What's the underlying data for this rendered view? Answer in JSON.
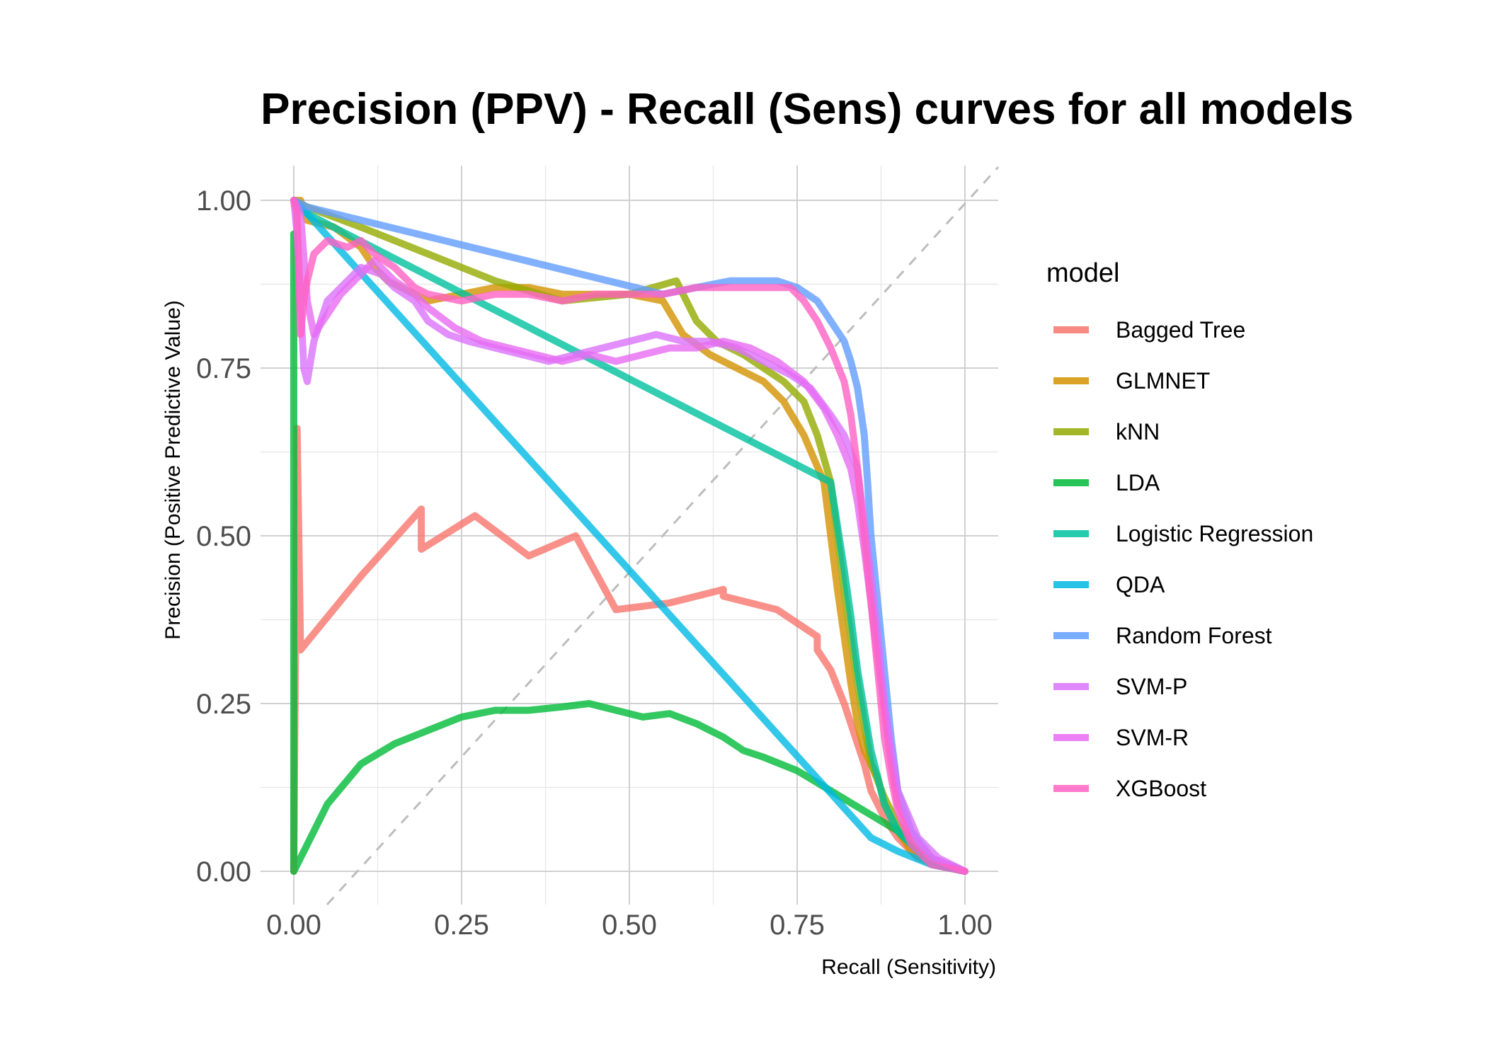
{
  "chart_data": {
    "type": "line",
    "title": "Precision (PPV) - Recall (Sens) curves for all models",
    "xlabel": "Recall (Sensitivity)",
    "ylabel": "Precision (Positive Predictive Value)",
    "xlim": [
      0,
      1
    ],
    "ylim": [
      0,
      1
    ],
    "x_ticks": [
      "0.00",
      "0.25",
      "0.50",
      "0.75",
      "1.00"
    ],
    "y_ticks": [
      "0.00",
      "0.25",
      "0.50",
      "0.75",
      "1.00"
    ],
    "grid": true,
    "reference_line": {
      "type": "diagonal",
      "style": "dashed",
      "color": "#bdbdbd"
    },
    "legend": {
      "title": "model",
      "position": "right"
    },
    "series": [
      {
        "name": "Bagged Tree",
        "color": "#F8766D",
        "x": [
          0.0,
          0.005,
          0.01,
          0.01,
          0.1,
          0.19,
          0.19,
          0.27,
          0.35,
          0.42,
          0.48,
          0.56,
          0.64,
          0.64,
          0.72,
          0.78,
          0.78,
          0.8,
          0.82,
          0.84,
          0.85,
          0.86,
          0.87,
          0.88,
          0.9,
          0.93,
          0.96,
          1.0
        ],
        "y": [
          0.0,
          0.66,
          0.33,
          0.33,
          0.44,
          0.54,
          0.48,
          0.53,
          0.47,
          0.5,
          0.39,
          0.4,
          0.42,
          0.41,
          0.39,
          0.35,
          0.33,
          0.3,
          0.25,
          0.19,
          0.16,
          0.12,
          0.1,
          0.08,
          0.05,
          0.02,
          0.01,
          0.0
        ]
      },
      {
        "name": "GLMNET",
        "color": "#D39200",
        "x": [
          0.0,
          0.01,
          0.02,
          0.06,
          0.1,
          0.12,
          0.14,
          0.18,
          0.2,
          0.25,
          0.3,
          0.35,
          0.4,
          0.45,
          0.5,
          0.55,
          0.58,
          0.62,
          0.66,
          0.7,
          0.73,
          0.76,
          0.79,
          0.8,
          0.81,
          0.82,
          0.83,
          0.84,
          0.85,
          0.87,
          0.88,
          0.9,
          0.92,
          0.95,
          1.0
        ],
        "y": [
          1.0,
          1.0,
          0.97,
          0.96,
          0.93,
          0.9,
          0.88,
          0.86,
          0.85,
          0.86,
          0.87,
          0.87,
          0.86,
          0.86,
          0.86,
          0.85,
          0.8,
          0.77,
          0.75,
          0.73,
          0.7,
          0.65,
          0.58,
          0.5,
          0.42,
          0.35,
          0.28,
          0.22,
          0.18,
          0.14,
          0.1,
          0.06,
          0.03,
          0.01,
          0.0
        ]
      },
      {
        "name": "kNN",
        "color": "#93AA00",
        "x": [
          0.0,
          0.02,
          0.1,
          0.2,
          0.3,
          0.4,
          0.5,
          0.57,
          0.6,
          0.63,
          0.67,
          0.7,
          0.73,
          0.76,
          0.78,
          0.8,
          0.81,
          0.82,
          0.83,
          0.84,
          0.85,
          0.86,
          0.88,
          0.9,
          0.93,
          0.96,
          1.0
        ],
        "y": [
          1.0,
          0.99,
          0.96,
          0.92,
          0.88,
          0.85,
          0.86,
          0.88,
          0.82,
          0.79,
          0.77,
          0.75,
          0.73,
          0.7,
          0.65,
          0.58,
          0.5,
          0.42,
          0.35,
          0.28,
          0.22,
          0.16,
          0.11,
          0.07,
          0.03,
          0.01,
          0.0
        ]
      },
      {
        "name": "LDA",
        "color": "#00BA38",
        "x": [
          0.0,
          0.0,
          0.0,
          0.02,
          0.05,
          0.1,
          0.15,
          0.2,
          0.25,
          0.3,
          0.35,
          0.4,
          0.44,
          0.48,
          0.52,
          0.56,
          0.6,
          0.64,
          0.67,
          0.7,
          0.75,
          0.8,
          0.85,
          0.9,
          0.93,
          0.96,
          1.0
        ],
        "y": [
          0.0,
          0.95,
          0.0,
          0.04,
          0.1,
          0.16,
          0.19,
          0.21,
          0.23,
          0.24,
          0.24,
          0.245,
          0.25,
          0.24,
          0.23,
          0.235,
          0.22,
          0.2,
          0.18,
          0.17,
          0.15,
          0.12,
          0.09,
          0.06,
          0.03,
          0.01,
          0.0
        ]
      },
      {
        "name": "Logistic Regression",
        "color": "#00C19F",
        "x": [
          0.0,
          0.02,
          0.8,
          0.82,
          0.83,
          0.84,
          0.85,
          0.86,
          0.87,
          0.88,
          0.9,
          0.93,
          0.96,
          1.0
        ],
        "y": [
          1.0,
          0.98,
          0.58,
          0.45,
          0.38,
          0.3,
          0.24,
          0.18,
          0.14,
          0.1,
          0.06,
          0.03,
          0.01,
          0.0
        ]
      },
      {
        "name": "QDA",
        "color": "#00B9E3",
        "x": [
          0.0,
          0.02,
          0.86,
          0.9,
          0.95,
          1.0
        ],
        "y": [
          1.0,
          0.98,
          0.05,
          0.03,
          0.01,
          0.0
        ]
      },
      {
        "name": "Random Forest",
        "color": "#619CFF",
        "x": [
          0.0,
          0.02,
          0.55,
          0.6,
          0.65,
          0.7,
          0.72,
          0.75,
          0.78,
          0.8,
          0.82,
          0.83,
          0.84,
          0.85,
          0.855,
          0.86,
          0.87,
          0.88,
          0.89,
          0.9,
          0.92,
          0.95,
          1.0
        ],
        "y": [
          1.0,
          0.99,
          0.86,
          0.87,
          0.88,
          0.88,
          0.88,
          0.87,
          0.85,
          0.82,
          0.79,
          0.76,
          0.72,
          0.65,
          0.58,
          0.5,
          0.4,
          0.3,
          0.2,
          0.12,
          0.06,
          0.02,
          0.0
        ]
      },
      {
        "name": "SVM-P",
        "color": "#DB72FB",
        "x": [
          0.0,
          0.005,
          0.01,
          0.015,
          0.02,
          0.03,
          0.05,
          0.08,
          0.1,
          0.13,
          0.15,
          0.18,
          0.2,
          0.23,
          0.26,
          0.3,
          0.34,
          0.38,
          0.42,
          0.46,
          0.5,
          0.54,
          0.58,
          0.62,
          0.66,
          0.7,
          0.74,
          0.77,
          0.8,
          0.82,
          0.84,
          0.85,
          0.86,
          0.87,
          0.88,
          0.9,
          0.93,
          0.96,
          1.0
        ],
        "y": [
          1.0,
          0.95,
          0.85,
          0.75,
          0.73,
          0.79,
          0.85,
          0.88,
          0.9,
          0.89,
          0.87,
          0.85,
          0.82,
          0.8,
          0.79,
          0.78,
          0.77,
          0.76,
          0.77,
          0.78,
          0.79,
          0.8,
          0.79,
          0.79,
          0.78,
          0.76,
          0.74,
          0.72,
          0.68,
          0.65,
          0.6,
          0.52,
          0.44,
          0.35,
          0.25,
          0.12,
          0.05,
          0.02,
          0.0
        ]
      },
      {
        "name": "SVM-R",
        "color": "#E76BF3",
        "x": [
          0.0,
          0.01,
          0.02,
          0.03,
          0.05,
          0.07,
          0.1,
          0.12,
          0.15,
          0.18,
          0.2,
          0.24,
          0.28,
          0.32,
          0.36,
          0.4,
          0.44,
          0.48,
          0.52,
          0.56,
          0.6,
          0.64,
          0.68,
          0.72,
          0.76,
          0.79,
          0.81,
          0.83,
          0.84,
          0.85,
          0.86,
          0.87,
          0.88,
          0.89,
          0.9,
          0.92,
          0.95,
          1.0
        ],
        "y": [
          1.0,
          0.98,
          0.85,
          0.8,
          0.83,
          0.86,
          0.89,
          0.91,
          0.88,
          0.86,
          0.84,
          0.81,
          0.79,
          0.78,
          0.77,
          0.76,
          0.77,
          0.76,
          0.77,
          0.78,
          0.78,
          0.79,
          0.78,
          0.76,
          0.73,
          0.69,
          0.65,
          0.6,
          0.55,
          0.48,
          0.4,
          0.32,
          0.24,
          0.16,
          0.1,
          0.05,
          0.02,
          0.0
        ]
      },
      {
        "name": "XGBoost",
        "color": "#FF61C3",
        "x": [
          0.0,
          0.005,
          0.01,
          0.015,
          0.02,
          0.03,
          0.05,
          0.08,
          0.1,
          0.12,
          0.15,
          0.18,
          0.2,
          0.25,
          0.3,
          0.35,
          0.4,
          0.45,
          0.5,
          0.55,
          0.6,
          0.65,
          0.7,
          0.74,
          0.76,
          0.78,
          0.8,
          0.82,
          0.83,
          0.84,
          0.85,
          0.86,
          0.87,
          0.88,
          0.89,
          0.9,
          0.92,
          0.95,
          1.0
        ],
        "y": [
          1.0,
          0.98,
          0.8,
          0.85,
          0.88,
          0.92,
          0.94,
          0.93,
          0.94,
          0.92,
          0.9,
          0.87,
          0.86,
          0.85,
          0.86,
          0.86,
          0.85,
          0.86,
          0.86,
          0.86,
          0.87,
          0.87,
          0.87,
          0.87,
          0.85,
          0.82,
          0.78,
          0.73,
          0.68,
          0.6,
          0.5,
          0.4,
          0.3,
          0.2,
          0.14,
          0.09,
          0.04,
          0.01,
          0.0
        ]
      }
    ]
  }
}
